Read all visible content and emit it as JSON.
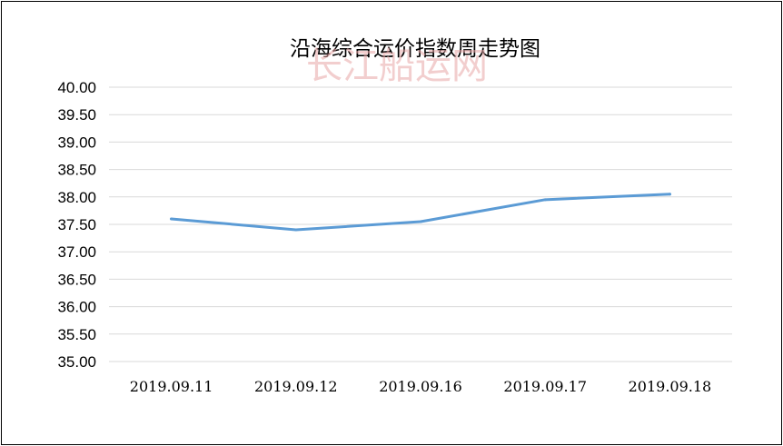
{
  "chart_data": {
    "type": "line",
    "title": "沿海综合运价指数周走势图",
    "watermark": "长江船运网",
    "categories": [
      "2019.09.11",
      "2019.09.12",
      "2019.09.16",
      "2019.09.17",
      "2019.09.18"
    ],
    "series": [
      {
        "values": [
          37.6,
          37.4,
          37.55,
          37.95,
          38.05
        ],
        "color": "#5b9bd5"
      }
    ],
    "ylim": [
      35.0,
      40.0
    ],
    "yticks": [
      "35.00",
      "35.50",
      "36.00",
      "36.50",
      "37.00",
      "37.50",
      "38.00",
      "38.50",
      "39.00",
      "39.50",
      "40.00"
    ],
    "grid": "horizontal",
    "legend": "none"
  }
}
